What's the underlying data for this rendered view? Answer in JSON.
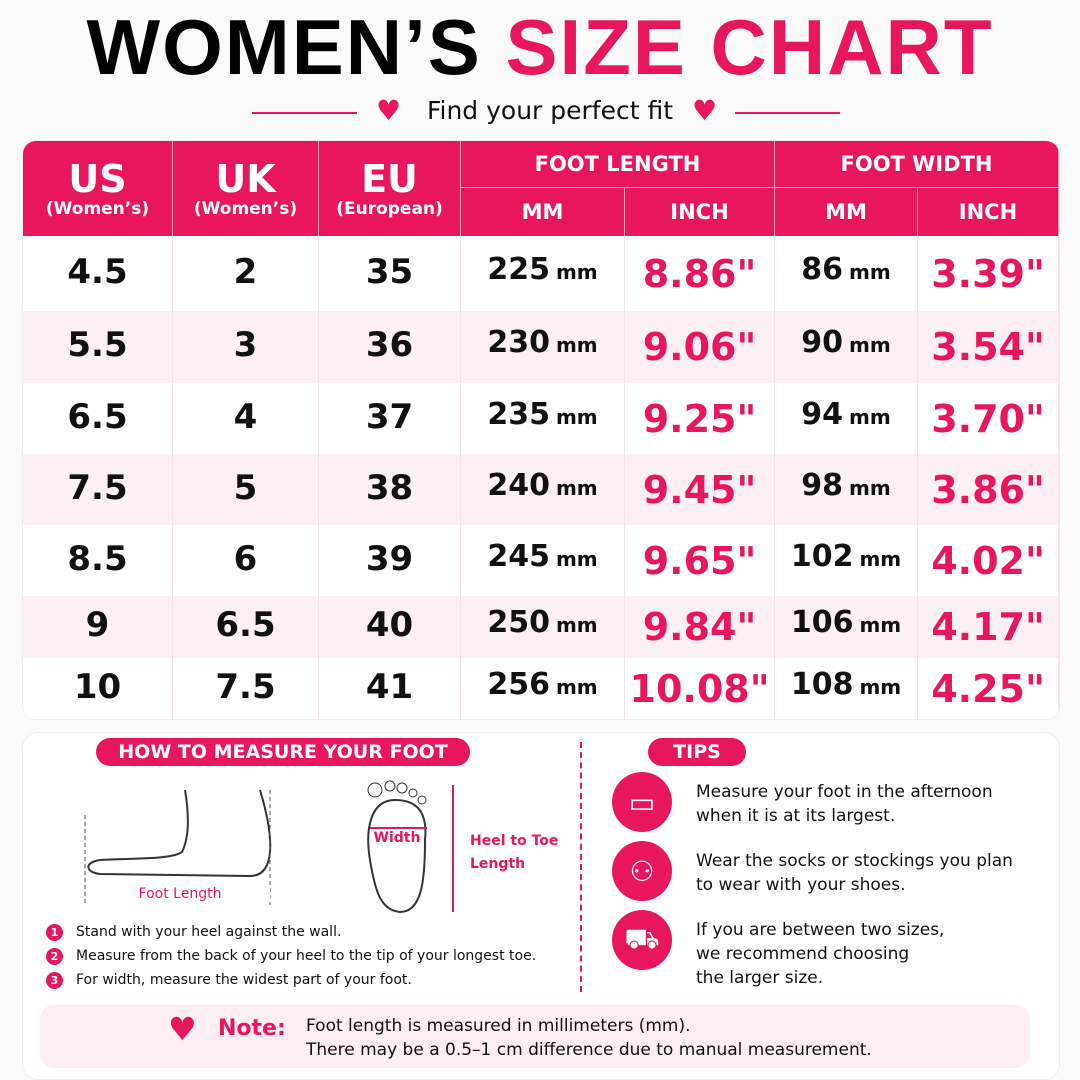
{
  "title": {
    "part1": "WOMEN’S",
    "part2": "SIZE CHART"
  },
  "subtitle": "Find your perfect fit",
  "table": {
    "headers": [
      {
        "main": "US",
        "sub": "(Women’s)"
      },
      {
        "main": "UK",
        "sub": "(Women’s)"
      },
      {
        "main": "EU",
        "sub": "(European)"
      }
    ],
    "groups": [
      {
        "label": "FOOT LENGTH",
        "cols": [
          "MM",
          "INCH"
        ]
      },
      {
        "label": "FOOT WIDTH",
        "cols": [
          "MM",
          "INCH"
        ]
      }
    ],
    "unit": "mm",
    "rows": [
      [
        "4.5",
        "2",
        "35",
        "225",
        "8.86\"",
        "86",
        "3.39\""
      ],
      [
        "5.5",
        "3",
        "36",
        "230",
        "9.06\"",
        "90",
        "3.54\""
      ],
      [
        "6.5",
        "4",
        "37",
        "235",
        "9.25\"",
        "94",
        "3.70\""
      ],
      [
        "7.5",
        "5",
        "38",
        "240",
        "9.45\"",
        "98",
        "3.86\""
      ],
      [
        "8.5",
        "6",
        "39",
        "245",
        "9.65\"",
        "102",
        "4.02\""
      ],
      [
        "9",
        "6.5",
        "40",
        "250",
        "9.84\"",
        "106",
        "4.17\""
      ],
      [
        "10",
        "7.5",
        "41",
        "256",
        "10.08\"",
        "108",
        "4.25\""
      ]
    ]
  },
  "measure": {
    "title": "HOW TO MEASURE YOUR FOOT",
    "foot_length": "Foot Length",
    "width": "Width",
    "heel_to_toe": [
      "Heel to Toe",
      "Length"
    ],
    "steps": [
      {
        "num": "1",
        "text": "Stand with your heel against the wall."
      },
      {
        "num": "2",
        "text": "Measure from the back of your heel to the tip of your longest toe."
      },
      {
        "num": "3",
        "text": "For width, measure the widest part of your foot."
      }
    ]
  },
  "tips": {
    "title": "TIPS",
    "items": [
      [
        "Measure your foot in the afternoon",
        "when it is at its largest."
      ],
      [
        "Wear the socks or stockings you plan",
        "to wear with your shoes."
      ],
      [
        "If you are between two sizes,",
        "we recommend choosing",
        "the larger size."
      ]
    ]
  },
  "note": {
    "label": "Note:",
    "lines": [
      "Foot length is measured in millimeters (mm).",
      "There may be a 0.5–1 cm difference due to manual measurement."
    ]
  }
}
